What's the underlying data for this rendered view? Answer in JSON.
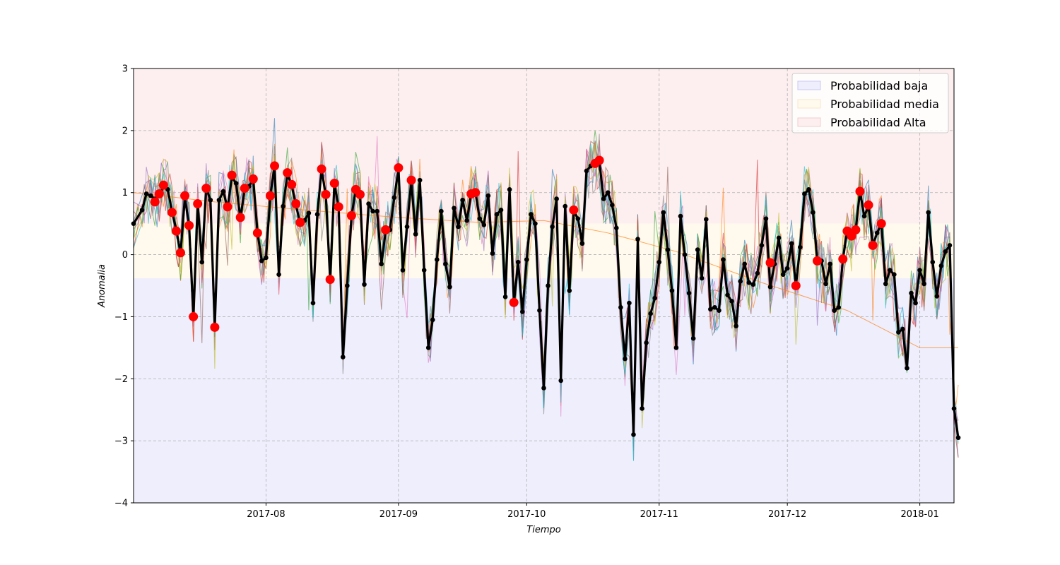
{
  "chart_data": {
    "type": "line",
    "title": "",
    "xlabel": "Tiempo",
    "ylabel": "Anomalia",
    "x_range": [
      "2017-07-01",
      "2018-01-09"
    ],
    "ylim": [
      -4,
      3
    ],
    "y_ticks": [
      {
        "value": 3,
        "label": "3"
      },
      {
        "value": 2,
        "label": "2"
      },
      {
        "value": 1,
        "label": "1"
      },
      {
        "value": 0,
        "label": "0"
      },
      {
        "value": -1,
        "label": "−1"
      },
      {
        "value": -2,
        "label": "−2"
      },
      {
        "value": -3,
        "label": "−3"
      },
      {
        "value": -4,
        "label": "−4"
      }
    ],
    "x_ticks": [
      {
        "date": "2017-08-01",
        "label": "2017-08"
      },
      {
        "date": "2017-09-01",
        "label": "2017-09"
      },
      {
        "date": "2017-10-01",
        "label": "2017-10"
      },
      {
        "date": "2017-11-01",
        "label": "2017-11"
      },
      {
        "date": "2017-12-01",
        "label": "2017-12"
      },
      {
        "date": "2018-01-01",
        "label": "2018-01"
      }
    ],
    "grid": true,
    "legend_position": "top-right",
    "bands": [
      {
        "name": "Probabilidad baja",
        "from": -4,
        "to": -0.38,
        "color": "#eeeefd"
      },
      {
        "name": "Probabilidad media",
        "from": -0.38,
        "to": 0.5,
        "color": "#fffaed"
      },
      {
        "name": "Probabilidad Alta",
        "from": 0.5,
        "to": 3,
        "color": "#fdefef"
      }
    ],
    "main_series": {
      "color": "#000000",
      "points": [
        [
          "2017-07-01",
          0.5
        ],
        [
          "2017-07-03",
          0.72
        ],
        [
          "2017-07-04",
          0.98
        ],
        [
          "2017-07-05",
          0.95
        ],
        [
          "2017-07-06",
          0.9
        ],
        [
          "2017-07-07",
          0.95
        ],
        [
          "2017-07-08",
          1.1
        ],
        [
          "2017-07-09",
          1.05
        ],
        [
          "2017-07-10",
          0.7
        ],
        [
          "2017-07-11",
          0.4
        ],
        [
          "2017-07-12",
          0.02
        ],
        [
          "2017-07-13",
          0.92
        ],
        [
          "2017-07-14",
          0.47
        ],
        [
          "2017-07-15",
          -1.0
        ],
        [
          "2017-07-16",
          0.82
        ],
        [
          "2017-07-17",
          -0.12
        ],
        [
          "2017-07-18",
          1.07
        ],
        [
          "2017-07-19",
          0.88
        ],
        [
          "2017-07-20",
          -1.17
        ],
        [
          "2017-07-21",
          0.88
        ],
        [
          "2017-07-22",
          1.02
        ],
        [
          "2017-07-23",
          0.75
        ],
        [
          "2017-07-24",
          1.25
        ],
        [
          "2017-07-25",
          1.15
        ],
        [
          "2017-07-26",
          0.58
        ],
        [
          "2017-07-27",
          1.05
        ],
        [
          "2017-07-28",
          1.1
        ],
        [
          "2017-07-29",
          1.22
        ],
        [
          "2017-07-30",
          0.35
        ],
        [
          "2017-07-31",
          -0.1
        ],
        [
          "2017-08-01",
          -0.05
        ],
        [
          "2017-08-02",
          0.95
        ],
        [
          "2017-08-03",
          1.43
        ],
        [
          "2017-08-04",
          -0.32
        ],
        [
          "2017-08-05",
          0.78
        ],
        [
          "2017-08-06",
          1.3
        ],
        [
          "2017-08-07",
          1.12
        ],
        [
          "2017-08-08",
          0.8
        ],
        [
          "2017-08-09",
          0.5
        ],
        [
          "2017-08-10",
          0.55
        ],
        [
          "2017-08-11",
          0.67
        ],
        [
          "2017-08-12",
          -0.78
        ],
        [
          "2017-08-13",
          0.65
        ],
        [
          "2017-08-14",
          1.37
        ],
        [
          "2017-08-15",
          0.95
        ],
        [
          "2017-08-16",
          -0.4
        ],
        [
          "2017-08-17",
          1.15
        ],
        [
          "2017-08-18",
          0.75
        ],
        [
          "2017-08-19",
          -1.65
        ],
        [
          "2017-08-20",
          -0.5
        ],
        [
          "2017-08-21",
          0.62
        ],
        [
          "2017-08-22",
          1.05
        ],
        [
          "2017-08-23",
          0.95
        ],
        [
          "2017-08-24",
          -0.48
        ],
        [
          "2017-08-25",
          0.82
        ],
        [
          "2017-08-26",
          0.7
        ],
        [
          "2017-08-27",
          0.7
        ],
        [
          "2017-08-28",
          -0.15
        ],
        [
          "2017-08-29",
          0.38
        ],
        [
          "2017-08-30",
          0.4
        ],
        [
          "2017-08-31",
          0.92
        ],
        [
          "2017-09-01",
          1.38
        ],
        [
          "2017-09-02",
          -0.25
        ],
        [
          "2017-09-03",
          0.45
        ],
        [
          "2017-09-04",
          1.18
        ],
        [
          "2017-09-05",
          0.33
        ],
        [
          "2017-09-06",
          1.2
        ],
        [
          "2017-09-07",
          -0.25
        ],
        [
          "2017-09-08",
          -1.5
        ],
        [
          "2017-09-09",
          -1.05
        ],
        [
          "2017-09-10",
          -0.08
        ],
        [
          "2017-09-11",
          0.7
        ],
        [
          "2017-09-12",
          -0.15
        ],
        [
          "2017-09-13",
          -0.52
        ],
        [
          "2017-09-14",
          0.75
        ],
        [
          "2017-09-15",
          0.45
        ],
        [
          "2017-09-16",
          0.88
        ],
        [
          "2017-09-17",
          0.55
        ],
        [
          "2017-09-18",
          0.98
        ],
        [
          "2017-09-19",
          1.0
        ],
        [
          "2017-09-20",
          0.58
        ],
        [
          "2017-09-21",
          0.48
        ],
        [
          "2017-09-22",
          0.95
        ],
        [
          "2017-09-23",
          0.02
        ],
        [
          "2017-09-24",
          0.65
        ],
        [
          "2017-09-25",
          0.72
        ],
        [
          "2017-09-26",
          -0.68
        ],
        [
          "2017-09-27",
          1.05
        ],
        [
          "2017-09-28",
          -0.78
        ],
        [
          "2017-09-29",
          -0.12
        ],
        [
          "2017-09-30",
          -0.92
        ],
        [
          "2017-10-01",
          -0.08
        ],
        [
          "2017-10-02",
          0.65
        ],
        [
          "2017-10-03",
          0.5
        ],
        [
          "2017-10-04",
          -0.9
        ],
        [
          "2017-10-05",
          -2.15
        ],
        [
          "2017-10-06",
          -0.5
        ],
        [
          "2017-10-07",
          0.45
        ],
        [
          "2017-10-08",
          0.9
        ],
        [
          "2017-10-09",
          -2.03
        ],
        [
          "2017-10-10",
          0.78
        ],
        [
          "2017-10-11",
          -0.58
        ],
        [
          "2017-10-12",
          0.7
        ],
        [
          "2017-10-13",
          0.58
        ],
        [
          "2017-10-14",
          0.18
        ],
        [
          "2017-10-15",
          1.35
        ],
        [
          "2017-10-16",
          1.43
        ],
        [
          "2017-10-17",
          1.48
        ],
        [
          "2017-10-18",
          1.5
        ],
        [
          "2017-10-19",
          0.9
        ],
        [
          "2017-10-20",
          1.0
        ],
        [
          "2017-10-21",
          0.8
        ],
        [
          "2017-10-22",
          0.43
        ],
        [
          "2017-10-23",
          -0.85
        ],
        [
          "2017-10-24",
          -1.68
        ],
        [
          "2017-10-25",
          -0.78
        ],
        [
          "2017-10-26",
          -2.9
        ],
        [
          "2017-10-27",
          0.25
        ],
        [
          "2017-10-28",
          -2.48
        ],
        [
          "2017-10-29",
          -1.42
        ],
        [
          "2017-10-30",
          -0.95
        ],
        [
          "2017-10-31",
          -0.7
        ],
        [
          "2017-11-01",
          -0.12
        ],
        [
          "2017-11-02",
          0.68
        ],
        [
          "2017-11-03",
          0.08
        ],
        [
          "2017-11-04",
          -0.58
        ],
        [
          "2017-11-05",
          -1.5
        ],
        [
          "2017-11-06",
          0.62
        ],
        [
          "2017-11-07",
          0.0
        ],
        [
          "2017-11-08",
          -0.62
        ],
        [
          "2017-11-09",
          -1.35
        ],
        [
          "2017-11-10",
          0.08
        ],
        [
          "2017-11-11",
          -0.38
        ],
        [
          "2017-11-12",
          0.57
        ],
        [
          "2017-11-13",
          -0.88
        ],
        [
          "2017-11-14",
          -0.85
        ],
        [
          "2017-11-15",
          -0.9
        ],
        [
          "2017-11-16",
          -0.08
        ],
        [
          "2017-11-17",
          -0.65
        ],
        [
          "2017-11-18",
          -0.75
        ],
        [
          "2017-11-19",
          -1.15
        ],
        [
          "2017-11-20",
          -0.43
        ],
        [
          "2017-11-21",
          -0.15
        ],
        [
          "2017-11-22",
          -0.45
        ],
        [
          "2017-11-23",
          -0.48
        ],
        [
          "2017-11-24",
          -0.3
        ],
        [
          "2017-11-25",
          0.15
        ],
        [
          "2017-11-26",
          0.58
        ],
        [
          "2017-11-27",
          -0.52
        ],
        [
          "2017-11-28",
          -0.15
        ],
        [
          "2017-11-29",
          0.27
        ],
        [
          "2017-11-30",
          -0.32
        ],
        [
          "2017-12-01",
          -0.22
        ],
        [
          "2017-12-02",
          0.18
        ],
        [
          "2017-12-03",
          -0.5
        ],
        [
          "2017-12-04",
          0.12
        ],
        [
          "2017-12-05",
          0.98
        ],
        [
          "2017-12-06",
          1.05
        ],
        [
          "2017-12-07",
          0.68
        ],
        [
          "2017-12-08",
          -0.08
        ],
        [
          "2017-12-09",
          -0.1
        ],
        [
          "2017-12-10",
          -0.47
        ],
        [
          "2017-12-11",
          -0.15
        ],
        [
          "2017-12-12",
          -0.9
        ],
        [
          "2017-12-13",
          -0.85
        ],
        [
          "2017-12-14",
          -0.07
        ],
        [
          "2017-12-15",
          0.38
        ],
        [
          "2017-12-16",
          0.3
        ],
        [
          "2017-12-17",
          0.4
        ],
        [
          "2017-12-18",
          1.02
        ],
        [
          "2017-12-19",
          0.62
        ],
        [
          "2017-12-20",
          0.78
        ],
        [
          "2017-12-21",
          0.15
        ],
        [
          "2017-12-22",
          0.35
        ],
        [
          "2017-12-23",
          0.5
        ],
        [
          "2017-12-24",
          -0.47
        ],
        [
          "2017-12-25",
          -0.25
        ],
        [
          "2017-12-26",
          -0.32
        ],
        [
          "2017-12-27",
          -1.25
        ],
        [
          "2017-12-28",
          -1.2
        ],
        [
          "2017-12-29",
          -1.83
        ],
        [
          "2017-12-30",
          -0.62
        ],
        [
          "2017-12-31",
          -0.78
        ],
        [
          "2018-01-01",
          -0.25
        ],
        [
          "2018-01-02",
          -0.47
        ],
        [
          "2018-01-03",
          0.68
        ],
        [
          "2018-01-04",
          -0.12
        ],
        [
          "2018-01-05",
          -0.67
        ],
        [
          "2018-01-06",
          -0.18
        ],
        [
          "2018-01-07",
          0.05
        ],
        [
          "2018-01-08",
          0.15
        ],
        [
          "2018-01-09",
          -2.48
        ],
        [
          "2018-01-10",
          -2.95
        ]
      ]
    },
    "highlight_points": {
      "color": "#ff0000",
      "points": [
        [
          "2017-07-06",
          0.85
        ],
        [
          "2017-07-07",
          0.98
        ],
        [
          "2017-07-08",
          1.12
        ],
        [
          "2017-07-10",
          0.68
        ],
        [
          "2017-07-11",
          0.38
        ],
        [
          "2017-07-12",
          0.03
        ],
        [
          "2017-07-13",
          0.95
        ],
        [
          "2017-07-14",
          0.47
        ],
        [
          "2017-07-15",
          -1.0
        ],
        [
          "2017-07-16",
          0.82
        ],
        [
          "2017-07-18",
          1.07
        ],
        [
          "2017-07-20",
          -1.17
        ],
        [
          "2017-07-23",
          0.77
        ],
        [
          "2017-07-24",
          1.28
        ],
        [
          "2017-07-26",
          0.6
        ],
        [
          "2017-07-27",
          1.07
        ],
        [
          "2017-07-29",
          1.22
        ],
        [
          "2017-07-30",
          0.35
        ],
        [
          "2017-08-02",
          0.95
        ],
        [
          "2017-08-03",
          1.43
        ],
        [
          "2017-08-06",
          1.32
        ],
        [
          "2017-08-07",
          1.13
        ],
        [
          "2017-08-08",
          0.82
        ],
        [
          "2017-08-09",
          0.52
        ],
        [
          "2017-08-14",
          1.38
        ],
        [
          "2017-08-15",
          0.97
        ],
        [
          "2017-08-16",
          -0.4
        ],
        [
          "2017-08-17",
          1.15
        ],
        [
          "2017-08-18",
          0.77
        ],
        [
          "2017-08-21",
          0.63
        ],
        [
          "2017-08-22",
          1.05
        ],
        [
          "2017-08-23",
          0.97
        ],
        [
          "2017-08-29",
          0.4
        ],
        [
          "2017-09-01",
          1.4
        ],
        [
          "2017-09-04",
          1.2
        ],
        [
          "2017-09-18",
          0.98
        ],
        [
          "2017-09-19",
          1.0
        ],
        [
          "2017-09-28",
          -0.77
        ],
        [
          "2017-10-12",
          0.72
        ],
        [
          "2017-10-17",
          1.47
        ],
        [
          "2017-10-18",
          1.52
        ],
        [
          "2017-11-27",
          -0.13
        ],
        [
          "2017-12-03",
          -0.5
        ],
        [
          "2017-12-08",
          -0.1
        ],
        [
          "2017-12-14",
          -0.07
        ],
        [
          "2017-12-15",
          0.38
        ],
        [
          "2017-12-16",
          0.3
        ],
        [
          "2017-12-17",
          0.4
        ],
        [
          "2017-12-18",
          1.02
        ],
        [
          "2017-12-20",
          0.8
        ],
        [
          "2017-12-21",
          0.15
        ],
        [
          "2017-12-23",
          0.5
        ]
      ]
    },
    "background_series": [
      {
        "color": "#1f77b4",
        "seed": 1
      },
      {
        "color": "#ff7f0e",
        "seed": 2
      },
      {
        "color": "#2ca02c",
        "seed": 3
      },
      {
        "color": "#d62728",
        "seed": 4
      },
      {
        "color": "#9467bd",
        "seed": 5
      },
      {
        "color": "#8c564b",
        "seed": 6
      },
      {
        "color": "#e377c2",
        "seed": 7
      },
      {
        "color": "#7f7f7f",
        "seed": 8
      },
      {
        "color": "#bcbd22",
        "seed": 9
      },
      {
        "color": "#17becf",
        "seed": 10
      }
    ],
    "trend_series": {
      "color": "#ff7f0e",
      "points": [
        [
          "2017-07-01",
          1.0
        ],
        [
          "2017-07-20",
          0.85
        ],
        [
          "2017-08-10",
          0.72
        ],
        [
          "2017-09-01",
          0.6
        ],
        [
          "2017-09-20",
          0.52
        ],
        [
          "2017-10-05",
          0.55
        ],
        [
          "2017-10-20",
          0.35
        ],
        [
          "2017-11-05",
          0.05
        ],
        [
          "2017-11-25",
          -0.45
        ],
        [
          "2017-12-15",
          -0.9
        ],
        [
          "2018-01-01",
          -1.5
        ],
        [
          "2018-01-10",
          -1.5
        ]
      ]
    },
    "legend": [
      {
        "label": "Probabilidad baja",
        "color": "#eeeefd",
        "edge": "#c9c9f3"
      },
      {
        "label": "Probabilidad media",
        "color": "#fffaed",
        "edge": "#f5e8c8"
      },
      {
        "label": "Probabilidad Alta",
        "color": "#fdefef",
        "edge": "#f3cccc"
      }
    ]
  }
}
